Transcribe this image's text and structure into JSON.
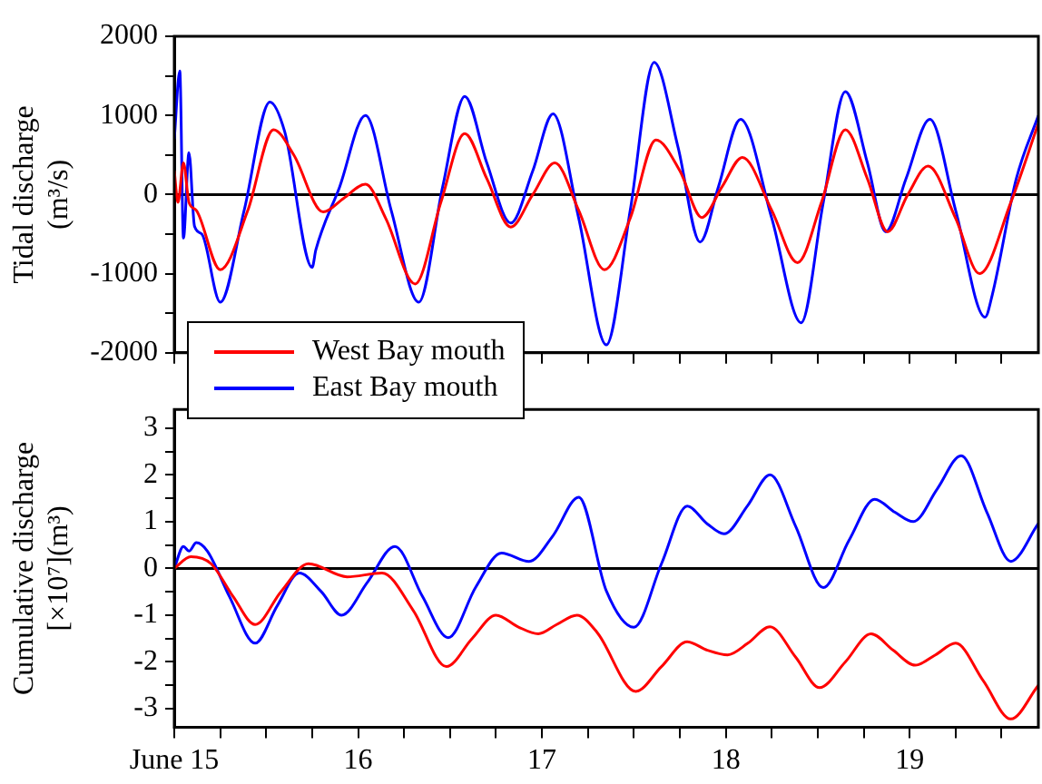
{
  "chart_data": [
    {
      "type": "line",
      "ylabel": "Tidal discharge\n(m³/s)",
      "xlim": [
        15,
        19.7
      ],
      "ylim": [
        -2000,
        2000
      ],
      "xticks": [
        15,
        15.25,
        15.5,
        15.75,
        16,
        16.25,
        16.5,
        16.75,
        17,
        17.25,
        17.5,
        17.75,
        18,
        18.25,
        18.5,
        18.75,
        19,
        19.25,
        19.5
      ],
      "yticks": [
        -2000,
        {
          "value": -1500,
          "label": null
        },
        -1000,
        {
          "value": -500,
          "label": null
        },
        0,
        {
          "value": 500,
          "label": null
        },
        1000,
        {
          "value": 1500,
          "label": null
        },
        2000
      ],
      "tick_labels": "y",
      "grid": false,
      "legend": "bottom left",
      "marker": "none",
      "line_style": "solid",
      "ref_lines": [
        {
          "axis": "y",
          "value": 0,
          "color": "#000000"
        }
      ],
      "series": [
        {
          "name": "West Bay mouth",
          "color": "#ff0000",
          "x": [
            15,
            15.02,
            15.05,
            15.08,
            15.12,
            15.25,
            15.4,
            15.54,
            15.65,
            15.81,
            15.92,
            16.04,
            16.15,
            16.31,
            16.45,
            16.58,
            16.7,
            16.83,
            16.95,
            17.07,
            17.2,
            17.34,
            17.48,
            17.62,
            17.75,
            17.87,
            17.98,
            18.09,
            18.25,
            18.39,
            18.52,
            18.65,
            18.77,
            18.88,
            18.99,
            19.1,
            19.25,
            19.38,
            19.55,
            19.7
          ],
          "values": [
            300,
            -100,
            400,
            -100,
            -200,
            -950,
            -200,
            820,
            500,
            -220,
            -50,
            130,
            -300,
            -1130,
            -100,
            770,
            200,
            -410,
            0,
            400,
            -200,
            -950,
            -300,
            690,
            300,
            -290,
            100,
            470,
            -200,
            -860,
            -100,
            820,
            200,
            -470,
            0,
            360,
            -300,
            -1000,
            -100,
            900
          ]
        },
        {
          "name": "East Bay mouth",
          "color": "#0000ff",
          "x": [
            15,
            15.03,
            15.05,
            15.08,
            15.11,
            15.15,
            15.25,
            15.38,
            15.52,
            15.6,
            15.75,
            15.77,
            15.9,
            16.04,
            16.18,
            16.33,
            16.46,
            16.58,
            16.7,
            16.83,
            16.95,
            17.06,
            17.2,
            17.35,
            17.48,
            17.61,
            17.74,
            17.86,
            17.96,
            18.08,
            18.25,
            18.41,
            18.53,
            18.65,
            18.77,
            18.87,
            18.98,
            19.11,
            19.25,
            19.41,
            19.45,
            19.58,
            19.7
          ],
          "values": [
            700,
            1560,
            -550,
            530,
            -400,
            -500,
            -1360,
            -200,
            1170,
            800,
            -920,
            -700,
            100,
            1000,
            -200,
            -1360,
            100,
            1240,
            400,
            -360,
            300,
            1020,
            -300,
            -1900,
            -200,
            1670,
            600,
            -600,
            100,
            950,
            -300,
            -1620,
            -100,
            1300,
            400,
            -470,
            200,
            950,
            -200,
            -1550,
            -1260,
            200,
            1000
          ]
        }
      ]
    },
    {
      "type": "line",
      "ylabel": "Cumulative discharge\n[×10⁷](m³)",
      "xlim": [
        15,
        19.7
      ],
      "ylim": [
        -3.4,
        3.4
      ],
      "xticks": [
        {
          "value": 15,
          "label": "June 15"
        },
        {
          "value": 15.25,
          "label": null
        },
        {
          "value": 15.5,
          "label": null
        },
        {
          "value": 15.75,
          "label": null
        },
        16,
        {
          "value": 16.25,
          "label": null
        },
        {
          "value": 16.5,
          "label": null
        },
        {
          "value": 16.75,
          "label": null
        },
        17,
        {
          "value": 17.25,
          "label": null
        },
        {
          "value": 17.5,
          "label": null
        },
        {
          "value": 17.75,
          "label": null
        },
        18,
        {
          "value": 18.25,
          "label": null
        },
        {
          "value": 18.5,
          "label": null
        },
        {
          "value": 18.75,
          "label": null
        },
        19,
        {
          "value": 19.25,
          "label": null
        },
        {
          "value": 19.5,
          "label": null
        }
      ],
      "yticks": [
        -3,
        {
          "value": -2.5,
          "label": null
        },
        -2,
        {
          "value": -1.5,
          "label": null
        },
        -1,
        {
          "value": -0.5,
          "label": null
        },
        0,
        {
          "value": 0.5,
          "label": null
        },
        1,
        {
          "value": 1.5,
          "label": null
        },
        2,
        {
          "value": 2.5,
          "label": null
        },
        3
      ],
      "grid": false,
      "marker": "none",
      "line_style": "solid",
      "ref_lines": [
        {
          "axis": "y",
          "value": 0,
          "color": "#000000"
        }
      ],
      "series": [
        {
          "color": "#ff0000",
          "x": [
            15,
            15.09,
            15.2,
            15.32,
            15.44,
            15.58,
            15.73,
            15.94,
            16.13,
            16.3,
            16.48,
            16.62,
            16.75,
            16.87,
            16.98,
            17.08,
            17.19,
            17.3,
            17.51,
            17.65,
            17.79,
            17.9,
            18.01,
            18.12,
            18.24,
            18.38,
            18.51,
            18.65,
            18.79,
            18.91,
            19.03,
            19.14,
            19.25,
            19.4,
            19.55,
            19.7
          ],
          "values": [
            0,
            0.25,
            0.1,
            -0.6,
            -1.2,
            -0.5,
            0.1,
            -0.18,
            -0.1,
            -0.9,
            -2.1,
            -1.5,
            -1.0,
            -1.25,
            -1.4,
            -1.2,
            -1.0,
            -1.37,
            -2.63,
            -2.1,
            -1.57,
            -1.75,
            -1.85,
            -1.6,
            -1.25,
            -1.9,
            -2.55,
            -2.0,
            -1.4,
            -1.75,
            -2.07,
            -1.85,
            -1.6,
            -2.4,
            -3.22,
            -2.5
          ]
        },
        {
          "color": "#0000ff",
          "x": [
            15,
            15.05,
            15.08,
            15.12,
            15.18,
            15.3,
            15.44,
            15.56,
            15.68,
            15.8,
            15.91,
            16.05,
            16.2,
            16.35,
            16.49,
            16.64,
            16.78,
            16.93,
            17.06,
            17.2,
            17.35,
            17.5,
            17.65,
            17.79,
            17.9,
            17.99,
            18.12,
            18.24,
            18.38,
            18.53,
            18.67,
            18.81,
            18.92,
            19.02,
            19.15,
            19.28,
            19.42,
            19.55,
            19.7
          ],
          "values": [
            0,
            0.47,
            0.37,
            0.55,
            0.37,
            -0.6,
            -1.6,
            -0.8,
            -0.1,
            -0.5,
            -1.0,
            -0.3,
            0.47,
            -0.6,
            -1.48,
            -0.4,
            0.33,
            0.15,
            0.7,
            1.52,
            -0.48,
            -1.26,
            0.1,
            1.33,
            0.95,
            0.74,
            1.35,
            2.0,
            0.9,
            -0.41,
            0.6,
            1.48,
            1.2,
            1.0,
            1.7,
            2.41,
            1.2,
            0.15,
            0.96
          ]
        }
      ]
    }
  ]
}
